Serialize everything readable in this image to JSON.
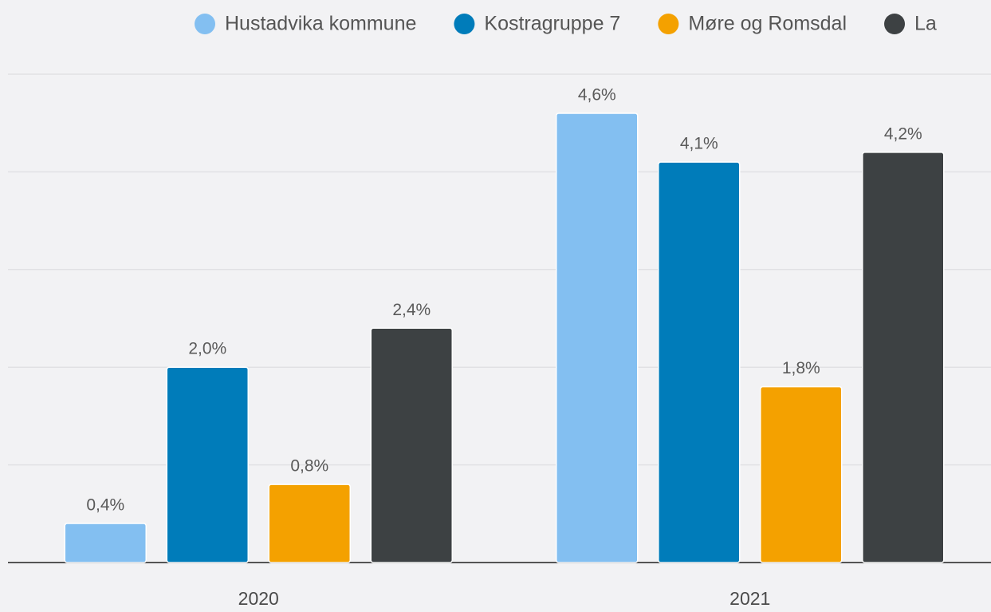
{
  "chart_data": {
    "type": "bar",
    "categories": [
      "2020",
      "2021"
    ],
    "series": [
      {
        "name": "Hustadvika kommune",
        "color": "#83bff1",
        "values": [
          0.4,
          4.6
        ],
        "value_labels": [
          "0,4%",
          "4,6%"
        ]
      },
      {
        "name": "Kostragruppe 7",
        "color": "#007cba",
        "values": [
          2.0,
          4.1
        ],
        "value_labels": [
          "2,0%",
          "4,1%"
        ]
      },
      {
        "name": "Møre og Romsdal",
        "color": "#f4a100",
        "values": [
          0.8,
          1.8
        ],
        "value_labels": [
          "0,8%",
          "1,8%"
        ]
      },
      {
        "name": "La",
        "color": "#3d4143",
        "values": [
          2.4,
          4.2
        ],
        "value_labels": [
          "2,4%",
          "4,2%"
        ]
      }
    ],
    "ylim": [
      0,
      5
    ],
    "yticks": [
      0,
      1,
      2,
      3,
      4,
      5
    ],
    "grid": true,
    "legend": "top"
  }
}
